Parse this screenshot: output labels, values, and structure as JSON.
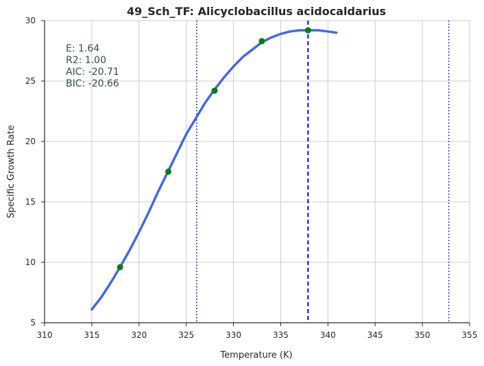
{
  "chart_data": {
    "type": "line",
    "title": "49_Sch_TF: Alicyclobacillus acidocaldarius",
    "xlabel": "Temperature (K)",
    "ylabel": "Specific Growth Rate",
    "xlim": [
      310,
      355
    ],
    "ylim": [
      5,
      30
    ],
    "xticks": [
      310,
      315,
      320,
      325,
      330,
      335,
      340,
      345,
      350,
      355
    ],
    "yticks": [
      5,
      10,
      15,
      20,
      25,
      30
    ],
    "grid": true,
    "stats": [
      "E:  1.64",
      "R2:  1.00",
      "AIC: -20.71",
      "BIC: -20.66"
    ],
    "points": {
      "x": [
        318,
        323.1,
        328,
        333,
        337.9
      ],
      "y": [
        9.6,
        17.5,
        24.2,
        28.3,
        29.2
      ],
      "color": "#008000"
    },
    "fit_curve": {
      "x": [
        315,
        316,
        317,
        318,
        319,
        320,
        321,
        322,
        323,
        324,
        325,
        326,
        327,
        328,
        329,
        330,
        331,
        332,
        333,
        334,
        335,
        336,
        337,
        338,
        339,
        340,
        340.9
      ],
      "y": [
        6.1,
        7.1,
        8.3,
        9.6,
        11.0,
        12.5,
        14.1,
        15.8,
        17.4,
        19.0,
        20.6,
        21.9,
        23.2,
        24.3,
        25.3,
        26.2,
        27.0,
        27.6,
        28.2,
        28.6,
        28.9,
        29.1,
        29.2,
        29.2,
        29.2,
        29.1,
        29.0
      ],
      "color": "#4169e1"
    },
    "vlines": [
      {
        "x": 326.1,
        "style": "dotted",
        "color": "#0000ff"
      },
      {
        "x": 337.9,
        "style": "dashed",
        "color": "#0000ff"
      },
      {
        "x": 352.8,
        "style": "dotted",
        "color": "#0000ff"
      }
    ]
  }
}
